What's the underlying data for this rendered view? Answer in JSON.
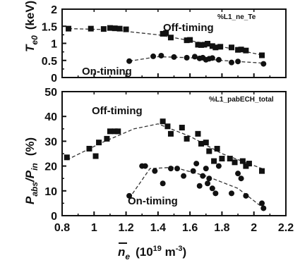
{
  "chart_data": [
    {
      "type": "scatter",
      "tag": "%L1_ne_Te",
      "ylabel": {
        "main": "T",
        "sub": "e0",
        "unit": "(keV)"
      },
      "xlim": [
        0.8,
        2.2
      ],
      "ylim": [
        0,
        2
      ],
      "yticks": [
        "0",
        "0.5",
        "1",
        "1.5",
        "2"
      ],
      "grid": false,
      "series": [
        {
          "name": "Off-timing",
          "marker": "square",
          "points": [
            [
              0.84,
              1.43
            ],
            [
              0.98,
              1.43
            ],
            [
              1.06,
              1.42
            ],
            [
              1.1,
              1.45
            ],
            [
              1.13,
              1.44
            ],
            [
              1.16,
              1.43
            ],
            [
              1.2,
              1.41
            ],
            [
              1.43,
              1.28
            ],
            [
              1.45,
              1.3
            ],
            [
              1.48,
              1.17
            ],
            [
              1.58,
              1.09
            ],
            [
              1.6,
              1.1
            ],
            [
              1.65,
              0.96
            ],
            [
              1.67,
              0.95
            ],
            [
              1.69,
              0.96
            ],
            [
              1.71,
              0.99
            ],
            [
              1.74,
              0.92
            ],
            [
              1.76,
              0.88
            ],
            [
              1.79,
              0.9
            ],
            [
              1.86,
              0.88
            ],
            [
              1.9,
              0.81
            ],
            [
              1.92,
              0.82
            ],
            [
              1.95,
              0.79
            ],
            [
              2.05,
              0.65
            ]
          ],
          "fit": [
            [
              0.84,
              1.43
            ],
            [
              1.1,
              1.4
            ],
            [
              1.4,
              1.25
            ],
            [
              1.6,
              1.08
            ],
            [
              1.8,
              0.9
            ],
            [
              2.05,
              0.66
            ]
          ]
        },
        {
          "name": "On-timing",
          "marker": "circle",
          "points": [
            [
              1.22,
              0.48
            ],
            [
              1.37,
              0.62
            ],
            [
              1.42,
              0.64
            ],
            [
              1.5,
              0.6
            ],
            [
              1.58,
              0.58
            ],
            [
              1.63,
              0.61
            ],
            [
              1.66,
              0.56
            ],
            [
              1.68,
              0.58
            ],
            [
              1.7,
              0.52
            ],
            [
              1.72,
              0.55
            ],
            [
              1.74,
              0.57
            ],
            [
              1.78,
              0.52
            ],
            [
              1.86,
              0.44
            ],
            [
              1.9,
              0.47
            ],
            [
              2.06,
              0.4
            ]
          ],
          "fit": [
            [
              1.22,
              0.48
            ],
            [
              1.4,
              0.61
            ],
            [
              1.6,
              0.58
            ],
            [
              1.8,
              0.5
            ],
            [
              2.06,
              0.42
            ]
          ]
        }
      ]
    },
    {
      "type": "scatter",
      "tag": "%L1_pabECH_total",
      "ylabel": {
        "main": "P",
        "sub": "abs",
        "sep": "/P",
        "sub2": "in",
        "unit": "(%)"
      },
      "xlim": [
        0.8,
        2.2
      ],
      "ylim": [
        0,
        50
      ],
      "yticks": [
        "0",
        "10",
        "20",
        "30",
        "40",
        "50"
      ],
      "xticks": [
        "0.8",
        "1",
        "1.2",
        "1.4",
        "1.6",
        "1.8",
        "2",
        "2.2"
      ],
      "xlabel": {
        "main": "n",
        "sub": "e",
        "unit": "(10",
        "exp1": "19",
        "unit2": " m",
        "exp2": "-3",
        "close": ")"
      },
      "grid": false,
      "series": [
        {
          "name": "Off-timing",
          "marker": "square",
          "points": [
            [
              0.83,
              23.5
            ],
            [
              0.97,
              27
            ],
            [
              1.01,
              24
            ],
            [
              1.03,
              29.5
            ],
            [
              1.08,
              31
            ],
            [
              1.1,
              34
            ],
            [
              1.13,
              34
            ],
            [
              1.15,
              34
            ],
            [
              1.43,
              38
            ],
            [
              1.46,
              36
            ],
            [
              1.48,
              33
            ],
            [
              1.55,
              35.5
            ],
            [
              1.58,
              31
            ],
            [
              1.65,
              33
            ],
            [
              1.67,
              29
            ],
            [
              1.7,
              29.5
            ],
            [
              1.72,
              26
            ],
            [
              1.75,
              22
            ],
            [
              1.77,
              27
            ],
            [
              1.8,
              23
            ],
            [
              1.85,
              23
            ],
            [
              1.88,
              21.5
            ],
            [
              1.93,
              22
            ],
            [
              1.95,
              20
            ],
            [
              1.97,
              21
            ],
            [
              2.05,
              18
            ]
          ],
          "fit": [
            [
              0.83,
              22.5
            ],
            [
              1.05,
              29.5
            ],
            [
              1.25,
              35
            ],
            [
              1.4,
              37
            ],
            [
              1.6,
              32
            ],
            [
              1.8,
              25
            ],
            [
              2.05,
              19
            ]
          ]
        },
        {
          "name": "On-timing",
          "marker": "circle",
          "points": [
            [
              1.22,
              8
            ],
            [
              1.3,
              20
            ],
            [
              1.32,
              20
            ],
            [
              1.38,
              18
            ],
            [
              1.43,
              13
            ],
            [
              1.48,
              19
            ],
            [
              1.52,
              19
            ],
            [
              1.56,
              16
            ],
            [
              1.62,
              18
            ],
            [
              1.64,
              21
            ],
            [
              1.66,
              12
            ],
            [
              1.68,
              16
            ],
            [
              1.7,
              19
            ],
            [
              1.71,
              13
            ],
            [
              1.72,
              15
            ],
            [
              1.74,
              11
            ],
            [
              1.76,
              9
            ],
            [
              1.78,
              20
            ],
            [
              1.86,
              9
            ],
            [
              1.9,
              17
            ],
            [
              1.92,
              15
            ],
            [
              1.95,
              8
            ],
            [
              2.05,
              5
            ],
            [
              2.06,
              3
            ]
          ],
          "fit": [
            [
              1.22,
              7
            ],
            [
              1.35,
              19
            ],
            [
              1.5,
              19.5
            ],
            [
              1.7,
              16
            ],
            [
              1.9,
              11
            ],
            [
              2.06,
              3
            ]
          ]
        }
      ]
    }
  ]
}
